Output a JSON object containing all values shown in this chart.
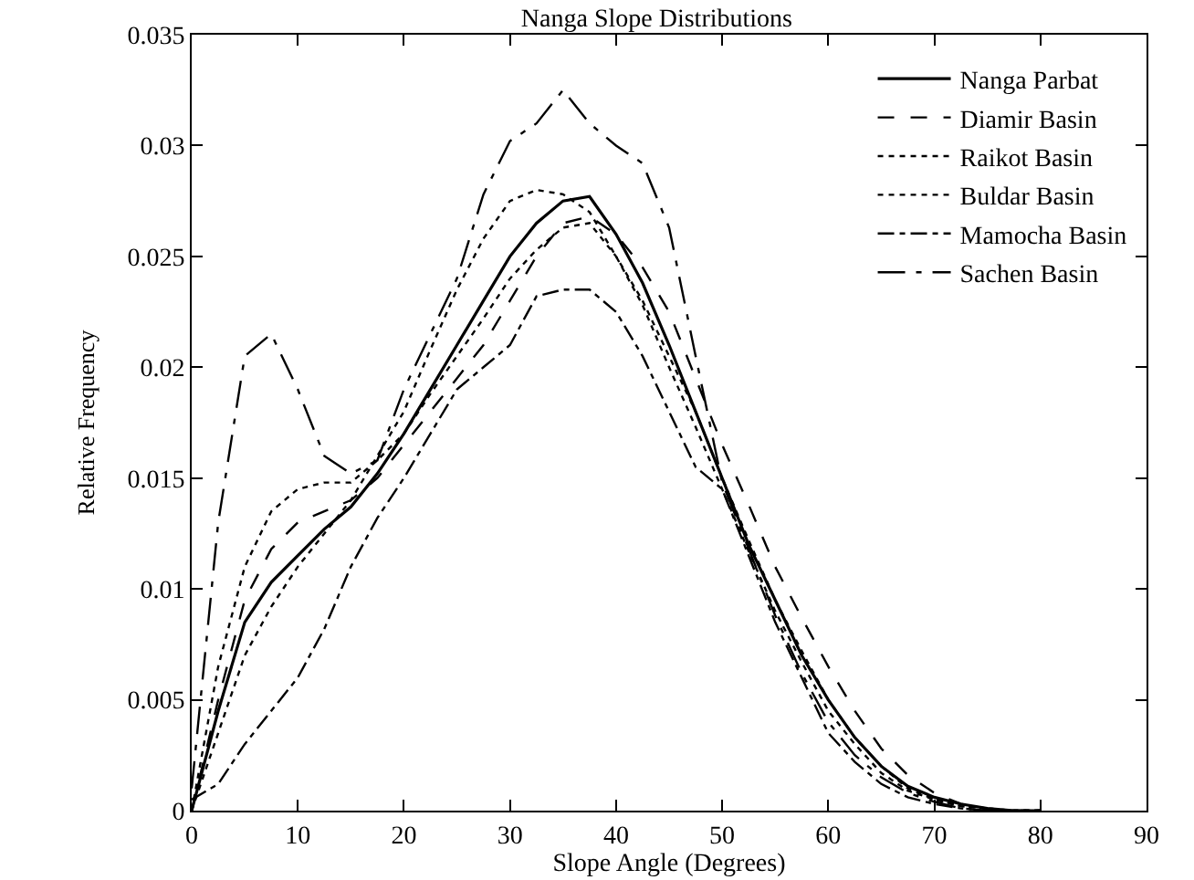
{
  "chart_data": {
    "type": "line",
    "title": "Nanga Slope Distributions",
    "xlabel": "Slope Angle (Degrees)",
    "ylabel": "Relative Frequency",
    "x": [
      0,
      2.5,
      5,
      7.5,
      10,
      12.5,
      15,
      17.5,
      20,
      22.5,
      25,
      27.5,
      30,
      32.5,
      35,
      37.5,
      40,
      42.5,
      45,
      47.5,
      50,
      52.5,
      55,
      57.5,
      60,
      62.5,
      65,
      67.5,
      70,
      72.5,
      75,
      77.5,
      80
    ],
    "xlim": [
      0,
      90
    ],
    "xticks": [
      0,
      10,
      20,
      30,
      40,
      50,
      60,
      70,
      80,
      90
    ],
    "ylim": [
      0,
      0.035
    ],
    "yticks": [
      0,
      0.005,
      0.01,
      0.015,
      0.02,
      0.025,
      0.03,
      0.035
    ],
    "grid": false,
    "legend": "top right",
    "marker": "none",
    "series": [
      {
        "name": "Nanga Parbat",
        "color": "#000000",
        "line_style": "solid",
        "values": [
          0,
          0.0045,
          0.0085,
          0.0103,
          0.0115,
          0.0127,
          0.0137,
          0.0152,
          0.017,
          0.019,
          0.021,
          0.023,
          0.025,
          0.0265,
          0.0275,
          0.0277,
          0.026,
          0.0238,
          0.021,
          0.018,
          0.015,
          0.012,
          0.0095,
          0.007,
          0.005,
          0.0033,
          0.002,
          0.0011,
          0.0006,
          0.0003,
          0.0001,
          0,
          0
        ]
      },
      {
        "name": "Diamir Basin",
        "color": "#000000",
        "line_style": "dashed",
        "values": [
          0,
          0.005,
          0.0095,
          0.0118,
          0.013,
          0.0135,
          0.014,
          0.015,
          0.0165,
          0.018,
          0.0195,
          0.021,
          0.023,
          0.025,
          0.0265,
          0.0268,
          0.026,
          0.0245,
          0.0225,
          0.0195,
          0.0165,
          0.0138,
          0.011,
          0.0087,
          0.0065,
          0.0045,
          0.0028,
          0.0016,
          0.0008,
          0.0003,
          0.0001,
          0,
          0
        ]
      },
      {
        "name": "Raikot Basin",
        "color": "#000000",
        "line_style": "dotted",
        "values": [
          0,
          0.0065,
          0.011,
          0.0135,
          0.0145,
          0.0148,
          0.0148,
          0.0158,
          0.017,
          0.0188,
          0.0205,
          0.0222,
          0.024,
          0.0253,
          0.0263,
          0.0265,
          0.025,
          0.023,
          0.0205,
          0.018,
          0.015,
          0.0122,
          0.0095,
          0.0072,
          0.005,
          0.0033,
          0.002,
          0.001,
          0.0005,
          0.0002,
          0.0001,
          0,
          0
        ]
      },
      {
        "name": "Buldar Basin",
        "color": "#000000",
        "line_style": "dotted",
        "values": [
          0,
          0.0035,
          0.007,
          0.0092,
          0.011,
          0.0125,
          0.014,
          0.016,
          0.018,
          0.0208,
          0.0235,
          0.0258,
          0.0275,
          0.028,
          0.0278,
          0.027,
          0.025,
          0.0228,
          0.02,
          0.0173,
          0.0145,
          0.0117,
          0.009,
          0.0067,
          0.0045,
          0.003,
          0.0017,
          0.0009,
          0.0005,
          0.0002,
          0.0001,
          0,
          0
        ]
      },
      {
        "name": "Mamocha Basin",
        "color": "#000000",
        "line_style": "dashdot",
        "values": [
          0.0005,
          0.0012,
          0.003,
          0.0045,
          0.006,
          0.0082,
          0.011,
          0.0132,
          0.015,
          0.017,
          0.019,
          0.02,
          0.021,
          0.0232,
          0.0235,
          0.0235,
          0.0225,
          0.0205,
          0.018,
          0.0155,
          0.0145,
          0.0115,
          0.0085,
          0.006,
          0.0035,
          0.0022,
          0.0012,
          0.0006,
          0.0003,
          0.0001,
          0,
          0,
          0
        ]
      },
      {
        "name": "Sachen Basin",
        "color": "#000000",
        "line_style": "longdashdot",
        "values": [
          0.001,
          0.013,
          0.0205,
          0.0215,
          0.019,
          0.016,
          0.0152,
          0.0158,
          0.019,
          0.0215,
          0.024,
          0.0278,
          0.0302,
          0.031,
          0.0325,
          0.031,
          0.03,
          0.0292,
          0.0263,
          0.0205,
          0.0148,
          0.0118,
          0.0088,
          0.0062,
          0.004,
          0.0025,
          0.0015,
          0.0008,
          0.0004,
          0.0001,
          0,
          0,
          0
        ]
      }
    ]
  }
}
